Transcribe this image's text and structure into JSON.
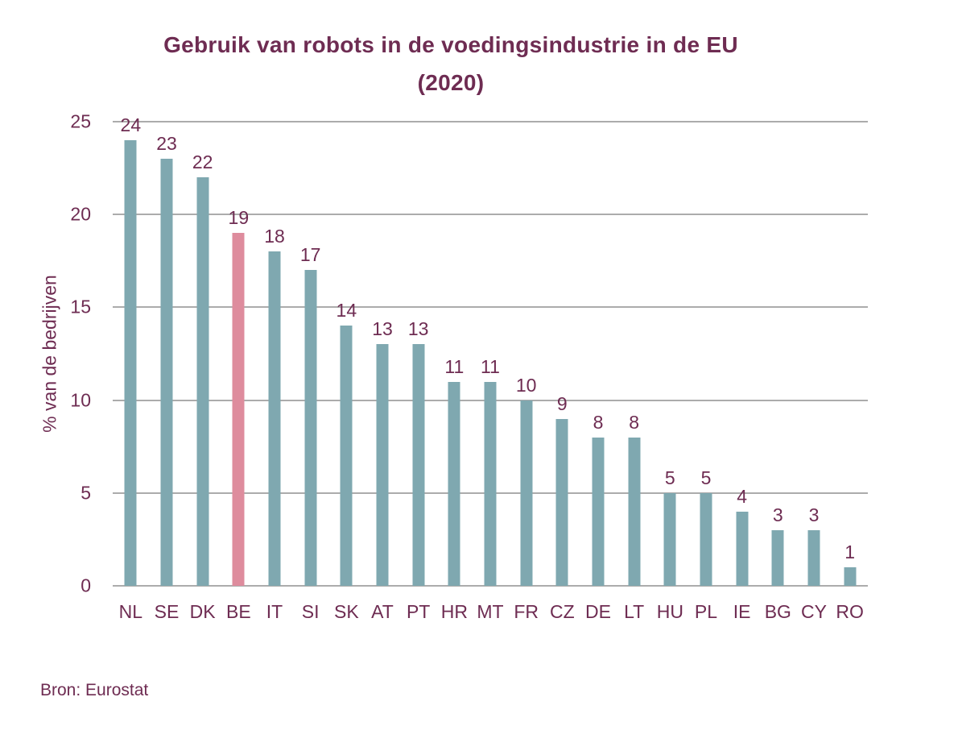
{
  "page": {
    "title_line1": "Gebruik van robots in de voedingsindustrie in de EU",
    "title_line2": "(2020)",
    "source": "Bron: Eurostat"
  },
  "colors": {
    "background": "#FFFFFF",
    "bar": "#7FA8B0",
    "bar_highlight": "#DE8C9D",
    "text": "#6E2C52",
    "gridline": "#ACACAC"
  },
  "chart_data": {
    "type": "bar",
    "title": "Gebruik van robots in de voedingsindustrie in de EU (2020)",
    "categories": [
      "NL",
      "SE",
      "DK",
      "BE",
      "IT",
      "SI",
      "SK",
      "AT",
      "PT",
      "HR",
      "MT",
      "FR",
      "CZ",
      "DE",
      "LT",
      "HU",
      "PL",
      "IE",
      "BG",
      "CY",
      "RO"
    ],
    "values": [
      24,
      23,
      22,
      19,
      18,
      17,
      14,
      13,
      13,
      11,
      11,
      10,
      9,
      8,
      8,
      5,
      5,
      4,
      3,
      3,
      1
    ],
    "highlighted_category": "BE",
    "xlabel": "",
    "ylabel": "% van de bedrijven",
    "ylim": [
      0,
      25
    ],
    "yticks": [
      0,
      5,
      10,
      15,
      20,
      25
    ],
    "grid": true,
    "legend": false,
    "value_labels": true,
    "source": "Bron: Eurostat"
  }
}
